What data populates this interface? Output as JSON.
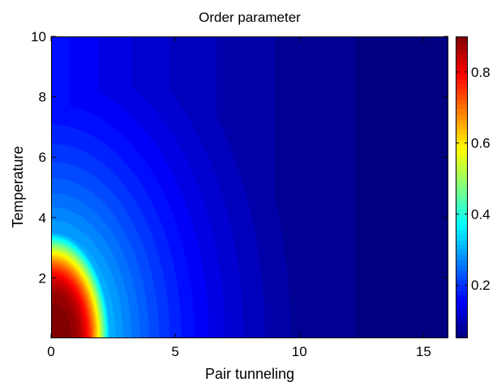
{
  "chart_data": {
    "type": "heatmap",
    "title": "Order parameter",
    "xlabel": "Pair tunneling",
    "ylabel": "Temperature",
    "xlim": [
      0,
      16
    ],
    "ylim": [
      0,
      10
    ],
    "xticks": [
      "0",
      "5",
      "10",
      "15"
    ],
    "xtick_values": [
      0,
      5,
      10,
      15
    ],
    "yticks": [
      "2",
      "4",
      "6",
      "8",
      "10"
    ],
    "ytick_values": [
      2,
      4,
      6,
      8,
      10
    ],
    "colorbar": {
      "range": [
        0.05,
        0.9
      ],
      "ticks": [
        "0.2",
        "0.4",
        "0.6",
        "0.8"
      ],
      "tick_values": [
        0.2,
        0.4,
        0.6,
        0.8
      ],
      "colormap": "jet"
    },
    "grid": false,
    "field_samples": [
      {
        "x": 0.0,
        "y": 0.0,
        "value": 0.9
      },
      {
        "x": 1.5,
        "y": 0.5,
        "value": 0.78
      },
      {
        "x": 2.3,
        "y": 0.5,
        "value": 0.6
      },
      {
        "x": 2.8,
        "y": 0.5,
        "value": 0.42
      },
      {
        "x": 0.0,
        "y": 3.3,
        "value": 0.6
      },
      {
        "x": 0.0,
        "y": 6.5,
        "value": 0.4
      },
      {
        "x": 0.0,
        "y": 10.0,
        "value": 0.3
      },
      {
        "x": 5.0,
        "y": 5.0,
        "value": 0.25
      },
      {
        "x": 10.0,
        "y": 5.0,
        "value": 0.15
      },
      {
        "x": 16.0,
        "y": 5.0,
        "value": 0.06
      }
    ]
  }
}
